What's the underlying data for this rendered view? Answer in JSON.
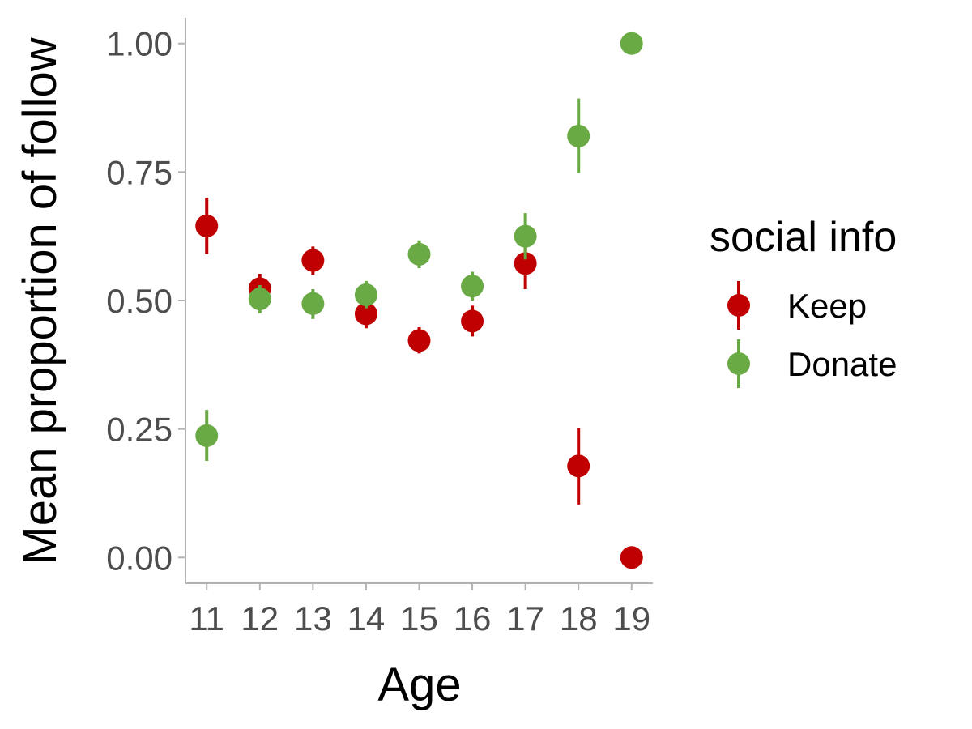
{
  "chart_data": {
    "type": "scatter",
    "title": "",
    "xlabel": "Age",
    "ylabel": "Mean proportion of follow",
    "x": [
      11,
      12,
      13,
      14,
      15,
      16,
      17,
      18,
      19
    ],
    "x_tick_labels": [
      "11",
      "12",
      "13",
      "14",
      "15",
      "16",
      "17",
      "18",
      "19"
    ],
    "y_ticks": [
      0.0,
      0.25,
      0.5,
      0.75,
      1.0
    ],
    "y_tick_labels": [
      "0.00",
      "0.25",
      "0.50",
      "0.75",
      "1.00"
    ],
    "ylim": [
      -0.05,
      1.05
    ],
    "xlim": [
      10.6,
      19.4
    ],
    "grid": false,
    "legend": {
      "title": "social info",
      "placement": "right"
    },
    "error_bars": true,
    "series": [
      {
        "name": "Keep",
        "color": "#c00000",
        "values": [
          0.645,
          0.523,
          0.578,
          0.474,
          0.422,
          0.46,
          0.572,
          0.178,
          0.0
        ],
        "lower": [
          0.59,
          0.497,
          0.55,
          0.446,
          0.397,
          0.43,
          0.522,
          0.103,
          0.0
        ],
        "upper": [
          0.7,
          0.552,
          0.605,
          0.5,
          0.448,
          0.49,
          0.62,
          0.252,
          0.0
        ]
      },
      {
        "name": "Donate",
        "color": "#6aaa44",
        "values": [
          0.237,
          0.503,
          0.494,
          0.511,
          0.59,
          0.528,
          0.625,
          0.82,
          1.0
        ],
        "lower": [
          0.188,
          0.475,
          0.464,
          0.485,
          0.563,
          0.5,
          0.58,
          0.748,
          1.0
        ],
        "upper": [
          0.287,
          0.53,
          0.522,
          0.538,
          0.617,
          0.556,
          0.67,
          0.893,
          1.0
        ]
      }
    ]
  }
}
